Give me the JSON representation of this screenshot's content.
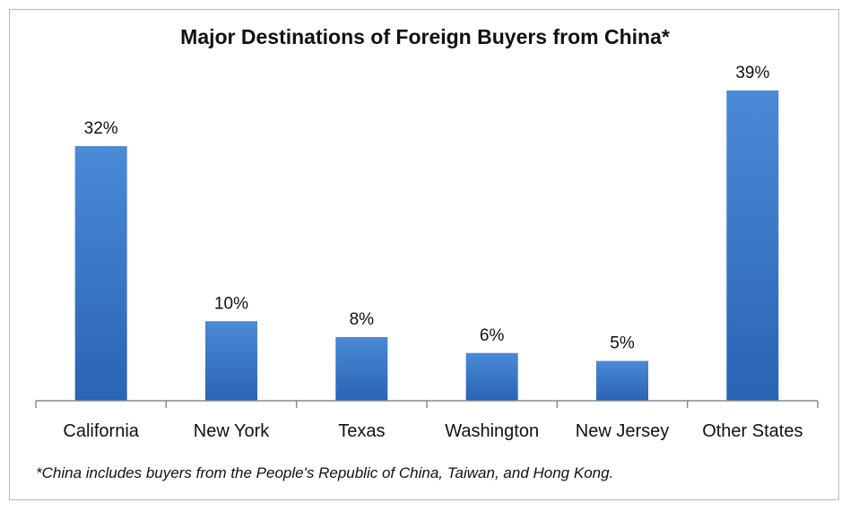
{
  "chart_data": {
    "type": "bar",
    "title": "Major Destinations of Foreign Buyers from China*",
    "categories": [
      "California",
      "New York",
      "Texas",
      "Washington",
      "New Jersey",
      "Other States"
    ],
    "values": [
      32,
      10,
      8,
      6,
      5,
      39
    ],
    "data_labels": [
      "32%",
      "10%",
      "8%",
      "6%",
      "5%",
      "39%"
    ],
    "unit": "%",
    "ylim": [
      0,
      40
    ],
    "grid": false,
    "legend": "none",
    "footnote": "*China includes buyers from the People's Republic of China, Taiwan, and Hong Kong.",
    "colors": {
      "bar_top": "#4a8ad6",
      "bar_bottom": "#2a64b4",
      "axis": "#8a8a8a"
    }
  }
}
